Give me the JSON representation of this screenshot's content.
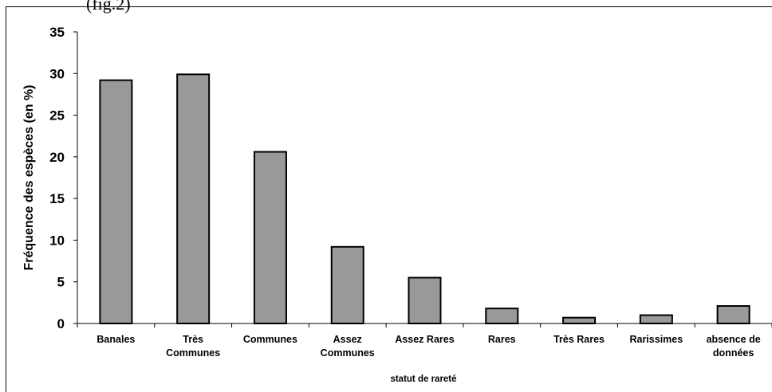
{
  "figure": {
    "caption_fragment": "(fig.2)"
  },
  "chart_data": {
    "type": "bar",
    "categories": [
      [
        "Banales"
      ],
      [
        "Très",
        "Communes"
      ],
      [
        "Communes"
      ],
      [
        "Assez",
        "Communes"
      ],
      [
        "Assez Rares"
      ],
      [
        "Rares"
      ],
      [
        "Très Rares"
      ],
      [
        "Rarissimes"
      ],
      [
        "absence de",
        "données"
      ]
    ],
    "values": [
      29.2,
      29.9,
      20.6,
      9.2,
      5.5,
      1.8,
      0.7,
      1.0,
      2.1
    ],
    "xlabel": "statut de rareté",
    "ylabel": "Fréquence des espèces (en %)",
    "ylim": [
      0,
      35
    ],
    "yticks": [
      0,
      5,
      10,
      15,
      20,
      25,
      30,
      35
    ],
    "bar_color": "#999999",
    "bar_edge_color": "#000000",
    "grid": false,
    "legend": false
  }
}
